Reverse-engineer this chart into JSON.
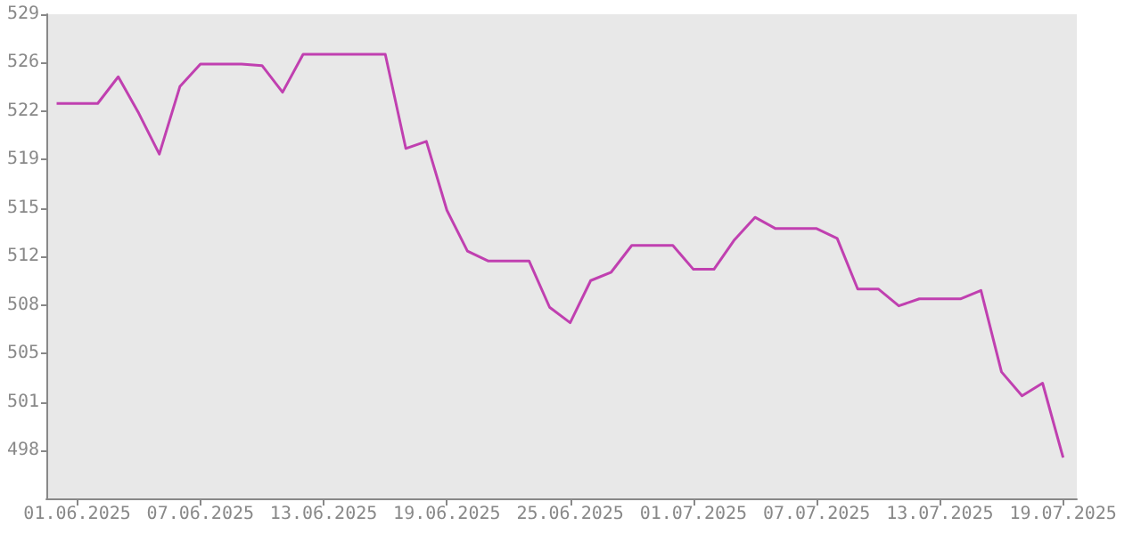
{
  "chart_data": {
    "type": "line",
    "x": [
      "2025-05-31",
      "2025-06-01",
      "2025-06-02",
      "2025-06-03",
      "2025-06-04",
      "2025-06-05",
      "2025-06-06",
      "2025-06-07",
      "2025-06-08",
      "2025-06-09",
      "2025-06-10",
      "2025-06-11",
      "2025-06-12",
      "2025-06-13",
      "2025-06-14",
      "2025-06-15",
      "2025-06-16",
      "2025-06-17",
      "2025-06-18",
      "2025-06-19",
      "2025-06-20",
      "2025-06-21",
      "2025-06-22",
      "2025-06-23",
      "2025-06-24",
      "2025-06-25",
      "2025-06-26",
      "2025-06-27",
      "2025-06-28",
      "2025-06-29",
      "2025-06-30",
      "2025-07-01",
      "2025-07-02",
      "2025-07-03",
      "2025-07-04",
      "2025-07-05",
      "2025-07-06",
      "2025-07-07",
      "2025-07-08",
      "2025-07-09",
      "2025-07-10",
      "2025-07-11",
      "2025-07-12",
      "2025-07-13",
      "2025-07-14",
      "2025-07-15",
      "2025-07-16",
      "2025-07-17",
      "2025-07-18",
      "2025-07-19"
    ],
    "series": [
      {
        "color": "#c040b0",
        "values": [
          522.7,
          522.7,
          522.7,
          524.6,
          522.0,
          519.1,
          523.9,
          525.5,
          525.5,
          525.5,
          525.4,
          523.5,
          526.2,
          526.2,
          526.2,
          526.2,
          526.2,
          519.5,
          520.0,
          515.1,
          512.2,
          511.5,
          511.5,
          511.5,
          508.2,
          507.1,
          510.1,
          510.7,
          512.6,
          512.6,
          512.6,
          510.9,
          510.9,
          513.0,
          514.6,
          513.8,
          513.8,
          513.8,
          513.1,
          509.5,
          509.5,
          508.3,
          508.8,
          508.8,
          508.8,
          509.4,
          503.6,
          501.9,
          502.8,
          497.5
        ]
      }
    ],
    "xlim": [
      "2025-05-30T12:00",
      "2025-07-19T16:00"
    ],
    "xticks": [
      {
        "value": "2025-06-01",
        "label": "01.06.2025"
      },
      {
        "value": "2025-06-07",
        "label": "07.06.2025"
      },
      {
        "value": "2025-06-13",
        "label": "13.06.2025"
      },
      {
        "value": "2025-06-19",
        "label": "19.06.2025"
      },
      {
        "value": "2025-06-25",
        "label": "25.06.2025"
      },
      {
        "value": "2025-07-01",
        "label": "01.07.2025"
      },
      {
        "value": "2025-07-07",
        "label": "07.07.2025"
      },
      {
        "value": "2025-07-13",
        "label": "13.07.2025"
      },
      {
        "value": "2025-07-19",
        "label": "19.07.2025"
      }
    ],
    "ylim": [
      494.6,
      529.05
    ],
    "yticks": [
      {
        "value": 498,
        "label": "498"
      },
      {
        "value": 501.45,
        "label": "501"
      },
      {
        "value": 504.9,
        "label": "505"
      },
      {
        "value": 508.35,
        "label": "508"
      },
      {
        "value": 511.8,
        "label": "512"
      },
      {
        "value": 515.25,
        "label": "515"
      },
      {
        "value": 518.7,
        "label": "519"
      },
      {
        "value": 522.15,
        "label": "522"
      },
      {
        "value": 525.6,
        "label": "526"
      },
      {
        "value": 529.05,
        "label": "529"
      }
    ],
    "tick_labels": true
  }
}
